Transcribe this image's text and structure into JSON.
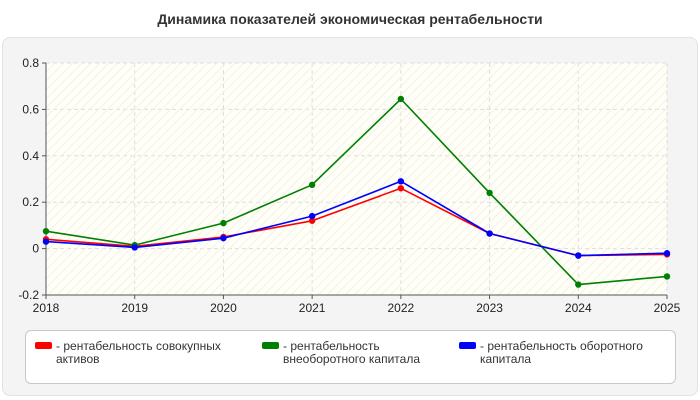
{
  "title": "Динамика показателей экономическая рентабельности",
  "legend": {
    "dash": "-"
  },
  "chart_data": {
    "type": "line",
    "title": "Динамика показателей экономическая рентабельности",
    "x": [
      "2018",
      "2019",
      "2020",
      "2021",
      "2022",
      "2023",
      "2024",
      "2025"
    ],
    "ylim": [
      -0.2,
      0.8
    ],
    "yticks": [
      "-0.2",
      "0",
      "0.2",
      "0.4",
      "0.6",
      "0.8"
    ],
    "grid": true,
    "legend_position": "bottom",
    "series": [
      {
        "name": "рентабельность совокупных активов",
        "color": "#ff0000",
        "values": [
          0.04,
          0.01,
          0.05,
          0.12,
          0.26,
          0.065,
          -0.03,
          -0.025
        ]
      },
      {
        "name": "рентабельность внеоборотного капитала",
        "color": "#008000",
        "values": [
          0.075,
          0.015,
          0.11,
          0.275,
          0.645,
          0.24,
          -0.155,
          -0.12
        ]
      },
      {
        "name": "рентабельность оборотного капитала",
        "color": "#0000ff",
        "values": [
          0.03,
          0.005,
          0.045,
          0.14,
          0.29,
          0.065,
          -0.03,
          -0.02
        ]
      }
    ]
  }
}
